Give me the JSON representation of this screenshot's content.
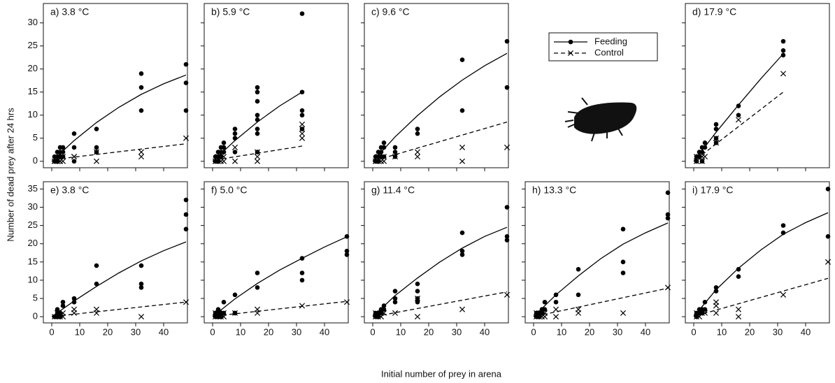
{
  "x_label": "Initial number of prey in arena",
  "y_label": "Number of dead prey after 24 hrs",
  "legend": {
    "entries": [
      "Feeding",
      "Control"
    ],
    "position": "top-center"
  },
  "styles": {
    "feeding": {
      "color": "#000000",
      "line": "solid",
      "marker": "dot"
    },
    "control": {
      "color": "#000000",
      "line": "dashed",
      "marker": "x"
    }
  },
  "chart_data": [
    {
      "type": "scatter",
      "title": "a) 3.8 °C",
      "xlim": [
        -3,
        48.5
      ],
      "ylim": [
        -1.4,
        34.2
      ],
      "xticks": [
        0,
        10,
        20,
        30,
        40
      ],
      "yticks": [
        0,
        5,
        10,
        15,
        20,
        25,
        30
      ],
      "tick_labels": {
        "x": false,
        "y": true
      },
      "feeding": {
        "x": [
          1,
          1,
          1,
          2,
          2,
          2,
          3,
          3,
          3,
          4,
          4,
          4,
          8,
          8,
          8,
          16,
          16,
          16,
          32,
          32,
          32,
          48,
          48,
          48
        ],
        "values": [
          0,
          0,
          1,
          1,
          2,
          0,
          2,
          3,
          1,
          3,
          2,
          1,
          6,
          3,
          0,
          7,
          3,
          2,
          19,
          16,
          11,
          21,
          17,
          11
        ],
        "fit_x": [
          0,
          8,
          16,
          24,
          32,
          40,
          48
        ],
        "fit_y": [
          0,
          4.5,
          8.4,
          11.7,
          14.5,
          16.8,
          18.7
        ]
      },
      "control": {
        "x": [
          1,
          1,
          2,
          2,
          3,
          3,
          4,
          4,
          8,
          8,
          16,
          16,
          32,
          32,
          48
        ],
        "values": [
          0,
          0,
          0,
          0,
          0,
          0,
          1,
          0,
          1,
          1,
          0,
          2,
          1,
          2,
          5
        ],
        "fit_x": [
          1,
          48
        ],
        "fit_y": [
          0.4,
          3.8
        ]
      }
    },
    {
      "type": "scatter",
      "title": "b) 5.9 °C",
      "xlim": [
        -3,
        48.5
      ],
      "ylim": [
        -1.4,
        34.2
      ],
      "xticks": [
        0,
        10,
        20,
        30,
        40
      ],
      "yticks": [
        0,
        5,
        10,
        15,
        20,
        25,
        30
      ],
      "tick_labels": {
        "x": false,
        "y": false
      },
      "feeding": {
        "x": [
          1,
          1,
          1,
          2,
          2,
          2,
          3,
          3,
          3,
          4,
          4,
          4,
          8,
          8,
          8,
          8,
          16,
          16,
          16,
          16,
          16,
          16,
          16,
          16,
          32,
          32,
          32,
          32,
          32
        ],
        "values": [
          0,
          1,
          0,
          1,
          0,
          2,
          2,
          1,
          3,
          4,
          2,
          3,
          7,
          6,
          5,
          2,
          16,
          15,
          13,
          10,
          9,
          7,
          6,
          2,
          32,
          15,
          11,
          10,
          7
        ],
        "fit_x": [
          0,
          8,
          16,
          24,
          32
        ],
        "fit_y": [
          0,
          4.5,
          8.5,
          12,
          15
        ]
      },
      "control": {
        "x": [
          1,
          1,
          2,
          2,
          3,
          3,
          4,
          4,
          8,
          8,
          16,
          16,
          16,
          32,
          32,
          32,
          32
        ],
        "values": [
          0,
          0,
          0,
          1,
          0,
          1,
          1,
          0,
          3,
          0,
          2,
          1,
          0,
          8,
          7,
          5,
          6
        ],
        "fit_x": [
          1,
          32
        ],
        "fit_y": [
          0.3,
          3.3
        ]
      }
    },
    {
      "type": "scatter",
      "title": "c) 9.6 °C",
      "xlim": [
        -3,
        48.5
      ],
      "ylim": [
        -1.4,
        34.2
      ],
      "xticks": [
        0,
        10,
        20,
        30,
        40
      ],
      "yticks": [
        0,
        5,
        10,
        15,
        20,
        25,
        30
      ],
      "tick_labels": {
        "x": false,
        "y": false
      },
      "feeding": {
        "x": [
          1,
          1,
          1,
          2,
          2,
          2,
          3,
          3,
          3,
          4,
          4,
          4,
          8,
          8,
          8,
          16,
          16,
          32,
          32,
          48,
          48
        ],
        "values": [
          0,
          1,
          0,
          1,
          2,
          0,
          3,
          2,
          1,
          4,
          3,
          1,
          3,
          1,
          2,
          7,
          6,
          22,
          11,
          26,
          16
        ],
        "fit_x": [
          0,
          8,
          16,
          24,
          32,
          40,
          48
        ],
        "fit_y": [
          0,
          5.3,
          9.9,
          14,
          17.6,
          20.7,
          23.4
        ]
      },
      "control": {
        "x": [
          1,
          1,
          2,
          2,
          3,
          4,
          4,
          8,
          16,
          16,
          32,
          32,
          48
        ],
        "values": [
          0,
          0,
          0,
          1,
          0,
          0,
          1,
          1,
          2,
          1,
          3,
          0,
          3
        ],
        "fit_x": [
          1,
          48
        ],
        "fit_y": [
          0.2,
          8.5
        ]
      }
    },
    {
      "type": "scatter",
      "title": "d) 17.9 °C",
      "xlim": [
        -3,
        48.5
      ],
      "ylim": [
        -1.4,
        34.2
      ],
      "xticks": [
        0,
        10,
        20,
        30,
        40
      ],
      "yticks": [
        0,
        5,
        10,
        15,
        20,
        25,
        30
      ],
      "tick_labels": {
        "x": false,
        "y": false
      },
      "feeding": {
        "x": [
          1,
          1,
          2,
          2,
          3,
          3,
          3,
          4,
          4,
          8,
          8,
          8,
          8,
          16,
          16,
          32,
          32,
          32
        ],
        "values": [
          1,
          0,
          1,
          2,
          2,
          0,
          3,
          4,
          3,
          8,
          7,
          5,
          4,
          12,
          10,
          26,
          24,
          23
        ],
        "fit_x": [
          0,
          8,
          16,
          24,
          32
        ],
        "fit_y": [
          0,
          6.3,
          12.2,
          17.9,
          23.3
        ]
      },
      "control": {
        "x": [
          1,
          1,
          2,
          3,
          3,
          4,
          8,
          8,
          16,
          32
        ],
        "values": [
          1,
          0,
          1,
          0,
          1,
          1,
          5,
          4,
          9,
          19
        ],
        "fit_x": [
          1,
          32
        ],
        "fit_y": [
          0.5,
          15
        ]
      }
    },
    {
      "type": "scatter",
      "title": "e) 3.8 °C",
      "xlim": [
        -3,
        48.5
      ],
      "ylim": [
        -1.7,
        37
      ],
      "xticks": [
        0,
        10,
        20,
        30,
        40
      ],
      "yticks": [
        0,
        5,
        10,
        15,
        20,
        25,
        30,
        35
      ],
      "tick_labels": {
        "x": true,
        "y": true
      },
      "feeding": {
        "x": [
          1,
          1,
          2,
          2,
          2,
          3,
          3,
          4,
          4,
          8,
          8,
          16,
          16,
          32,
          32,
          32,
          48,
          48,
          48
        ],
        "values": [
          0,
          0,
          2,
          1,
          0,
          1,
          0,
          4,
          3,
          5,
          4,
          14,
          9,
          14,
          9,
          8,
          32,
          28,
          24
        ],
        "fit_x": [
          0,
          8,
          16,
          24,
          32,
          40,
          48
        ],
        "fit_y": [
          0,
          4.3,
          8.3,
          12,
          15.3,
          18.1,
          20.5
        ]
      },
      "control": {
        "x": [
          1,
          2,
          2,
          3,
          4,
          4,
          8,
          8,
          16,
          16,
          32,
          48
        ],
        "values": [
          0,
          0,
          1,
          0,
          0,
          1,
          2,
          1,
          2,
          1,
          0,
          4
        ],
        "fit_x": [
          1,
          48
        ],
        "fit_y": [
          0.1,
          4
        ]
      }
    },
    {
      "type": "scatter",
      "title": "f) 5.0 °C",
      "xlim": [
        -3,
        48.5
      ],
      "ylim": [
        -1.7,
        37
      ],
      "xticks": [
        0,
        10,
        20,
        30,
        40
      ],
      "yticks": [
        0,
        5,
        10,
        15,
        20,
        25,
        30,
        35
      ],
      "tick_labels": {
        "x": true,
        "y": false
      },
      "feeding": {
        "x": [
          1,
          1,
          2,
          2,
          2,
          3,
          3,
          4,
          4,
          8,
          8,
          8,
          16,
          16,
          32,
          32,
          32,
          48,
          48,
          48
        ],
        "values": [
          1,
          0,
          2,
          1,
          0,
          1,
          0,
          4,
          1,
          6,
          1,
          1,
          12,
          8,
          16,
          12,
          10,
          22,
          18,
          17
        ],
        "fit_x": [
          0,
          8,
          16,
          24,
          32,
          40,
          48
        ],
        "fit_y": [
          0,
          4.9,
          9.1,
          12.8,
          16,
          19.1,
          21.9
        ]
      },
      "control": {
        "x": [
          1,
          1,
          2,
          2,
          3,
          4,
          4,
          8,
          16,
          16,
          32,
          48
        ],
        "values": [
          1,
          0,
          0,
          1,
          0,
          1,
          0,
          1,
          2,
          1,
          3,
          4
        ],
        "fit_x": [
          1,
          48
        ],
        "fit_y": [
          0.2,
          4.2
        ]
      }
    },
    {
      "type": "scatter",
      "title": "g) 11.4 °C",
      "xlim": [
        -3,
        48.5
      ],
      "ylim": [
        -1.7,
        37
      ],
      "xticks": [
        0,
        10,
        20,
        30,
        40
      ],
      "yticks": [
        0,
        5,
        10,
        15,
        20,
        25,
        30,
        35
      ],
      "tick_labels": {
        "x": true,
        "y": false
      },
      "feeding": {
        "x": [
          1,
          1,
          2,
          2,
          3,
          3,
          4,
          4,
          8,
          8,
          8,
          16,
          16,
          16,
          16,
          32,
          32,
          32,
          48,
          48,
          48
        ],
        "values": [
          1,
          0,
          1,
          0,
          2,
          1,
          3,
          2,
          7,
          5,
          4,
          9,
          7,
          5,
          4,
          23,
          18,
          17,
          30,
          22,
          21
        ],
        "fit_x": [
          0,
          8,
          16,
          24,
          32,
          40,
          48
        ],
        "fit_y": [
          0,
          5.8,
          10.6,
          15,
          18.8,
          22,
          24.5
        ]
      },
      "control": {
        "x": [
          1,
          1,
          2,
          3,
          3,
          4,
          8,
          16,
          16,
          32,
          48
        ],
        "values": [
          0,
          1,
          0,
          0,
          1,
          1,
          1,
          5,
          0,
          2,
          6
        ],
        "fit_x": [
          1,
          48
        ],
        "fit_y": [
          0.1,
          6.8
        ]
      }
    },
    {
      "type": "scatter",
      "title": "h) 13.3 °C",
      "xlim": [
        -3,
        48.5
      ],
      "ylim": [
        -1.7,
        37
      ],
      "xticks": [
        0,
        10,
        20,
        30,
        40
      ],
      "yticks": [
        0,
        5,
        10,
        15,
        20,
        25,
        30,
        35
      ],
      "tick_labels": {
        "x": true,
        "y": false
      },
      "feeding": {
        "x": [
          1,
          1,
          2,
          2,
          3,
          3,
          4,
          4,
          8,
          8,
          16,
          16,
          32,
          32,
          32,
          48,
          48,
          48
        ],
        "values": [
          1,
          0,
          1,
          0,
          2,
          1,
          4,
          2,
          6,
          4,
          13,
          6,
          24,
          15,
          12,
          34,
          28,
          27
        ],
        "fit_x": [
          0,
          8,
          16,
          24,
          32,
          40,
          48
        ],
        "fit_y": [
          0,
          6,
          11.2,
          15.9,
          19.9,
          23,
          25.7
        ]
      },
      "control": {
        "x": [
          1,
          1,
          2,
          2,
          3,
          4,
          4,
          8,
          8,
          16,
          16,
          32,
          48
        ],
        "values": [
          0,
          1,
          1,
          0,
          0,
          1,
          0,
          2,
          0,
          2,
          1,
          1,
          8
        ],
        "fit_x": [
          1,
          48
        ],
        "fit_y": [
          0.2,
          7.8
        ]
      }
    },
    {
      "type": "scatter",
      "title": "i) 17.9 °C",
      "xlim": [
        -3,
        48.5
      ],
      "ylim": [
        -1.7,
        37
      ],
      "xticks": [
        0,
        10,
        20,
        30,
        40
      ],
      "yticks": [
        0,
        5,
        10,
        15,
        20,
        25,
        30,
        35
      ],
      "tick_labels": {
        "x": true,
        "y": false
      },
      "feeding": {
        "x": [
          1,
          1,
          2,
          2,
          3,
          3,
          4,
          4,
          8,
          8,
          16,
          16,
          32,
          32,
          48,
          48
        ],
        "values": [
          1,
          0,
          2,
          1,
          2,
          1,
          4,
          2,
          8,
          7,
          13,
          11,
          25,
          23,
          35,
          22
        ],
        "fit_x": [
          0,
          8,
          16,
          24,
          32,
          40,
          48
        ],
        "fit_y": [
          0,
          7.4,
          13.3,
          18.3,
          22.6,
          25.8,
          28.5
        ]
      },
      "control": {
        "x": [
          1,
          1,
          2,
          3,
          4,
          8,
          8,
          8,
          16,
          16,
          32,
          48
        ],
        "values": [
          0,
          1,
          0,
          1,
          1,
          4,
          3,
          1,
          2,
          0,
          6,
          15
        ],
        "fit_x": [
          1,
          48
        ],
        "fit_y": [
          0.3,
          10.5
        ]
      }
    }
  ]
}
